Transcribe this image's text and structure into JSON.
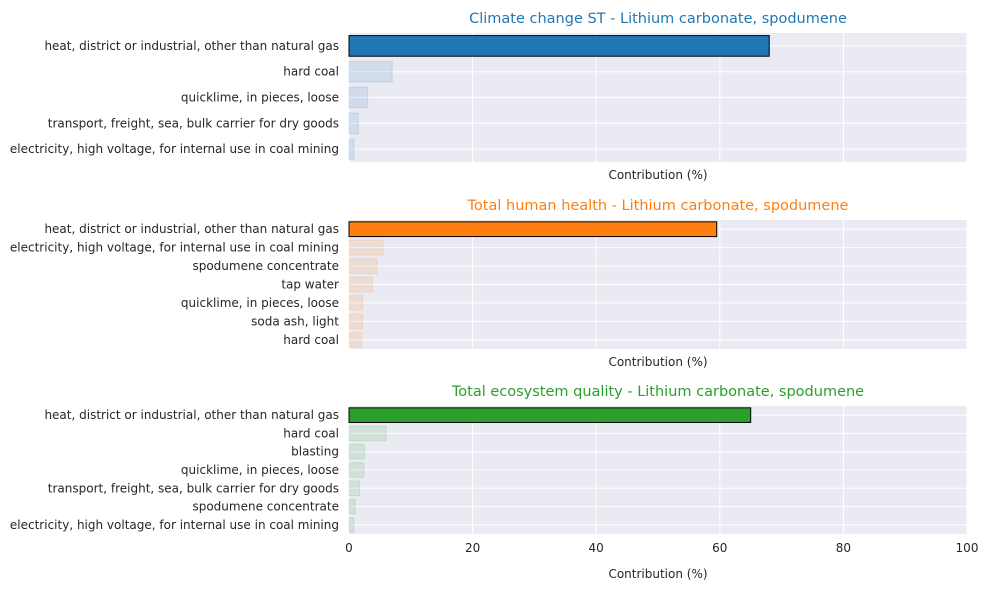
{
  "chart_data": [
    {
      "type": "bar",
      "orientation": "horizontal",
      "title": "Climate change ST - Lithium carbonate, spodumene",
      "title_color": "#1f77b4",
      "xlabel": "Contribution (%)",
      "ylabel": "",
      "xlim": [
        0,
        100
      ],
      "grid": true,
      "highlight_color": "#1f77b4",
      "categories": [
        "heat, district or industrial, other than natural gas",
        "hard coal",
        "quicklime, in pieces, loose",
        "transport, freight, sea, bulk carrier for dry goods",
        "electricity, high voltage, for internal use in coal mining"
      ],
      "values": [
        68,
        7,
        3,
        1.5,
        0.8
      ]
    },
    {
      "type": "bar",
      "orientation": "horizontal",
      "title": "Total human health - Lithium carbonate, spodumene",
      "title_color": "#ff7f0e",
      "xlabel": "Contribution (%)",
      "ylabel": "",
      "xlim": [
        0,
        100
      ],
      "grid": true,
      "highlight_color": "#ff7f0e",
      "categories": [
        "heat, district or industrial, other than natural gas",
        "electricity, high voltage, for internal use in coal mining",
        "spodumene concentrate",
        "tap water",
        "quicklime, in pieces, loose",
        "soda ash, light",
        "hard coal"
      ],
      "values": [
        59.5,
        5.5,
        4.5,
        3.8,
        2.2,
        2.2,
        2.1
      ]
    },
    {
      "type": "bar",
      "orientation": "horizontal",
      "title": "Total ecosystem quality - Lithium carbonate, spodumene",
      "title_color": "#2ca02c",
      "xlabel": "Contribution (%)",
      "ylabel": "",
      "xlim": [
        0,
        100
      ],
      "xticks": [
        "0",
        "20",
        "40",
        "60",
        "80",
        "100"
      ],
      "grid": true,
      "highlight_color": "#2ca02c",
      "categories": [
        "heat, district or industrial, other than natural gas",
        "hard coal",
        "blasting",
        "quicklime, in pieces, loose",
        "transport, freight, sea, bulk carrier for dry goods",
        "spodumene concentrate",
        "electricity, high voltage, for internal use in coal mining"
      ],
      "values": [
        65,
        6,
        2.5,
        2.4,
        1.7,
        1.0,
        0.8
      ]
    }
  ]
}
